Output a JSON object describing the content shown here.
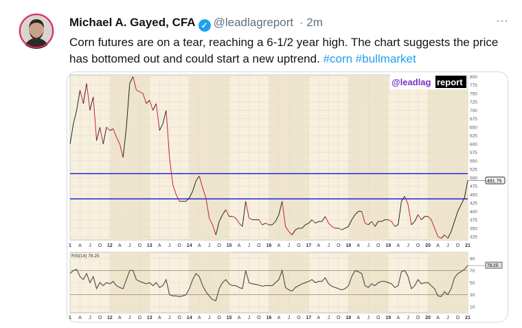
{
  "tweet": {
    "author_name": "Michael A. Gayed, CFA",
    "handle": "@leadlagreport",
    "separator": "·",
    "time": "2m",
    "more_icon": "more-dots-icon",
    "verified_icon": "verified-badge-icon",
    "text": "Corn futures are on a tear, reaching a 6-1/2 year high. The chart suggests the price has bottomed out and could start a new uptrend. ",
    "hashtags": [
      "#corn",
      "#bullmarket"
    ]
  },
  "chart_data": {
    "type": "line",
    "watermark": "@leadlagreport",
    "price_axis_ticks": [
      800,
      775,
      750,
      725,
      700,
      675,
      650,
      625,
      600,
      575,
      550,
      525,
      500,
      475,
      450,
      425,
      400,
      375,
      350,
      325
    ],
    "last_price_label": "491.75",
    "horizontal_lines": [
      512,
      437
    ],
    "x_tick_labels": [
      "1",
      "A",
      "J",
      "O",
      "12",
      "A",
      "J",
      "O",
      "13",
      "A",
      "J",
      "O",
      "14",
      "A",
      "J",
      "O",
      "15",
      "A",
      "J",
      "O",
      "16",
      "A",
      "J",
      "O",
      "17",
      "A",
      "J",
      "O",
      "18",
      "A",
      "J",
      "O",
      "19",
      "A",
      "J",
      "O",
      "20",
      "A",
      "J",
      "O",
      "21"
    ],
    "price_series": [
      600,
      660,
      700,
      760,
      720,
      780,
      700,
      740,
      610,
      650,
      600,
      650,
      640,
      645,
      620,
      600,
      560,
      650,
      780,
      800,
      760,
      755,
      750,
      720,
      730,
      700,
      720,
      640,
      660,
      700,
      560,
      480,
      450,
      430,
      430,
      430,
      440,
      460,
      490,
      505,
      470,
      440,
      380,
      360,
      330,
      370,
      390,
      405,
      385,
      385,
      380,
      365,
      355,
      430,
      380,
      375,
      375,
      375,
      360,
      365,
      360,
      360,
      370,
      390,
      430,
      355,
      340,
      330,
      345,
      350,
      350,
      360,
      365,
      375,
      365,
      370,
      370,
      385,
      365,
      355,
      350,
      350,
      345,
      350,
      355,
      375,
      390,
      400,
      400,
      365,
      360,
      370,
      355,
      370,
      370,
      375,
      375,
      370,
      355,
      360,
      430,
      445,
      420,
      360,
      370,
      390,
      375,
      385,
      385,
      375,
      350,
      325,
      320,
      330,
      320,
      340,
      370,
      400,
      420,
      440,
      491.75
    ],
    "rsi_label": "RSI(14) 78.25",
    "rsi_last_label": "78.25",
    "rsi_axis_ticks": [
      90,
      70,
      50,
      30,
      10
    ],
    "rsi_series": [
      65,
      70,
      72,
      60,
      55,
      65,
      50,
      60,
      40,
      50,
      45,
      50,
      48,
      52,
      45,
      42,
      40,
      55,
      70,
      70,
      55,
      52,
      50,
      48,
      50,
      45,
      50,
      42,
      45,
      55,
      30,
      28,
      28,
      27,
      28,
      30,
      40,
      55,
      65,
      60,
      45,
      35,
      28,
      22,
      20,
      40,
      50,
      55,
      48,
      45,
      45,
      42,
      40,
      70,
      50,
      48,
      47,
      46,
      44,
      45,
      45,
      45,
      50,
      55,
      70,
      42,
      38,
      36,
      42,
      45,
      48,
      50,
      52,
      55,
      50,
      52,
      52,
      58,
      48,
      44,
      42,
      40,
      38,
      40,
      45,
      60,
      70,
      68,
      65,
      45,
      42,
      48,
      45,
      50,
      52,
      52,
      50,
      48,
      42,
      45,
      68,
      70,
      60,
      40,
      45,
      55,
      48,
      50,
      50,
      45,
      40,
      28,
      27,
      35,
      30,
      40,
      58,
      65,
      68,
      72,
      78.25
    ],
    "ylim": [
      315,
      805
    ],
    "rsi_ylim": [
      0,
      100
    ],
    "x_range": [
      "2011-01",
      "2021-01"
    ]
  }
}
